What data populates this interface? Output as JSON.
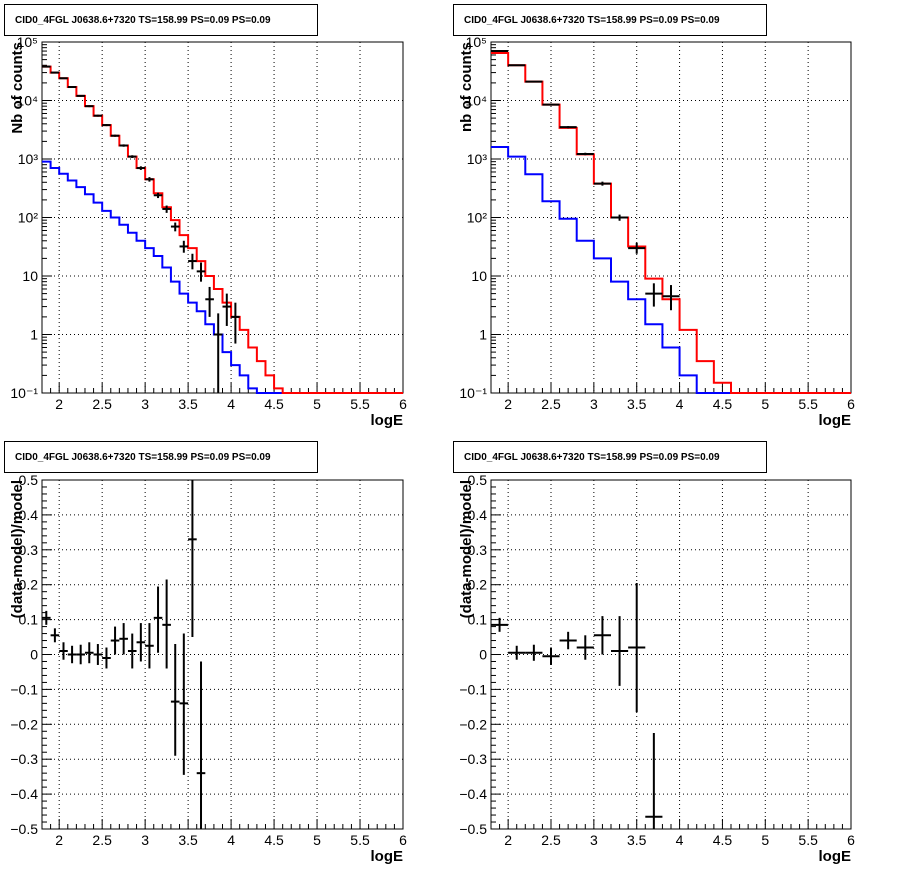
{
  "chart_data": [
    {
      "type": "line",
      "title": "CID0_4FGL J0638.6+7320 TS=158.99 PS=0.09 PS=0.09",
      "xlabel": "logE",
      "ylabel": "Nb of counts",
      "xlim": [
        1.8,
        6.0
      ],
      "ylim": [
        0.1,
        100000
      ],
      "yscale": "log",
      "xticks": [
        "2",
        "2.5",
        "3",
        "3.5",
        "4",
        "4.5",
        "5",
        "5.5",
        "6"
      ],
      "yticks": [
        "10⁻¹",
        "1",
        "10",
        "10²",
        "10³",
        "10⁴",
        "10⁵"
      ],
      "grid": true,
      "series": [
        {
          "color": "#0000ff",
          "edges": [
            1.8,
            1.9,
            2.0,
            2.1,
            2.2,
            2.3,
            2.4,
            2.5,
            2.6,
            2.7,
            2.8,
            2.9,
            3.0,
            3.1,
            3.2,
            3.3,
            3.4,
            3.5,
            3.6,
            3.7,
            3.8,
            3.9,
            4.0,
            4.1,
            4.2,
            4.3,
            4.4,
            4.5,
            4.6,
            4.7,
            4.8,
            4.9,
            5.0,
            5.1,
            5.2,
            5.3,
            5.4,
            5.5,
            5.6,
            5.7,
            5.8,
            5.9,
            6.0
          ],
          "values": [
            900,
            700,
            560,
            430,
            330,
            250,
            180,
            130,
            100,
            75,
            55,
            40,
            30,
            22,
            14,
            8,
            5,
            3.5,
            2.5,
            1.5,
            1,
            0.5,
            0.3,
            0.2,
            0.12,
            0.1,
            0.1,
            0.1,
            0.1,
            0.1,
            0.1,
            0.1,
            0.1,
            0.1,
            0.1,
            0.1,
            0.1,
            0.1,
            0.1,
            0.1,
            0.1,
            0.1
          ]
        },
        {
          "color": "#ff0000",
          "edges": [
            1.8,
            1.9,
            2.0,
            2.1,
            2.2,
            2.3,
            2.4,
            2.5,
            2.6,
            2.7,
            2.8,
            2.9,
            3.0,
            3.1,
            3.2,
            3.3,
            3.4,
            3.5,
            3.6,
            3.7,
            3.8,
            3.9,
            4.0,
            4.1,
            4.2,
            4.3,
            4.4,
            4.5,
            4.6,
            4.7,
            4.8,
            4.9,
            5.0,
            5.1,
            5.2,
            5.3,
            5.4,
            5.5,
            5.6,
            5.7,
            5.8,
            5.9,
            6.0
          ],
          "values": [
            38000,
            30000,
            24000,
            17000,
            12000,
            8000,
            5500,
            3800,
            2500,
            1700,
            1100,
            700,
            450,
            260,
            150,
            90,
            50,
            30,
            18,
            10,
            6,
            3.5,
            2,
            1.2,
            0.6,
            0.35,
            0.2,
            0.12,
            0.1,
            0.1,
            0.1,
            0.1,
            0.1,
            0.1,
            0.1,
            0.1,
            0.1,
            0.1,
            0.1,
            0.1,
            0.1,
            0.1
          ]
        }
      ],
      "points": [
        {
          "x": 1.85,
          "y": 38000,
          "xerr": 0.05,
          "ylo": 37000,
          "yhi": 39000
        },
        {
          "x": 1.95,
          "y": 30000,
          "xerr": 0.05,
          "ylo": 29500,
          "yhi": 30500
        },
        {
          "x": 2.05,
          "y": 24000,
          "xerr": 0.05,
          "ylo": 23500,
          "yhi": 24500
        },
        {
          "x": 2.15,
          "y": 17000,
          "xerr": 0.05,
          "ylo": 16500,
          "yhi": 17500
        },
        {
          "x": 2.25,
          "y": 12000,
          "xerr": 0.05,
          "ylo": 11600,
          "yhi": 12400
        },
        {
          "x": 2.35,
          "y": 8000,
          "xerr": 0.05,
          "ylo": 7700,
          "yhi": 8300
        },
        {
          "x": 2.45,
          "y": 5500,
          "xerr": 0.05,
          "ylo": 5300,
          "yhi": 5700
        },
        {
          "x": 2.55,
          "y": 3800,
          "xerr": 0.05,
          "ylo": 3650,
          "yhi": 3950
        },
        {
          "x": 2.65,
          "y": 2500,
          "xerr": 0.05,
          "ylo": 2400,
          "yhi": 2600
        },
        {
          "x": 2.75,
          "y": 1700,
          "xerr": 0.05,
          "ylo": 1620,
          "yhi": 1780
        },
        {
          "x": 2.85,
          "y": 1100,
          "xerr": 0.05,
          "ylo": 1040,
          "yhi": 1160
        },
        {
          "x": 2.95,
          "y": 700,
          "xerr": 0.05,
          "ylo": 650,
          "yhi": 750
        },
        {
          "x": 3.05,
          "y": 450,
          "xerr": 0.05,
          "ylo": 410,
          "yhi": 490
        },
        {
          "x": 3.15,
          "y": 240,
          "xerr": 0.05,
          "ylo": 215,
          "yhi": 265
        },
        {
          "x": 3.25,
          "y": 140,
          "xerr": 0.05,
          "ylo": 120,
          "yhi": 160
        },
        {
          "x": 3.35,
          "y": 70,
          "xerr": 0.05,
          "ylo": 58,
          "yhi": 82
        },
        {
          "x": 3.45,
          "y": 32,
          "xerr": 0.05,
          "ylo": 25,
          "yhi": 40
        },
        {
          "x": 3.55,
          "y": 18,
          "xerr": 0.05,
          "ylo": 13,
          "yhi": 24
        },
        {
          "x": 3.65,
          "y": 12,
          "xerr": 0.05,
          "ylo": 8,
          "yhi": 17
        },
        {
          "x": 3.75,
          "y": 4,
          "xerr": 0.05,
          "ylo": 2,
          "yhi": 6.5
        },
        {
          "x": 3.85,
          "y": 1,
          "xerr": 0.05,
          "ylo": 0.1,
          "yhi": 2.3
        },
        {
          "x": 3.95,
          "y": 3,
          "xerr": 0.05,
          "ylo": 1.4,
          "yhi": 5
        },
        {
          "x": 4.05,
          "y": 2,
          "xerr": 0.05,
          "ylo": 0.7,
          "yhi": 3.5
        }
      ]
    },
    {
      "type": "line",
      "title": "CID0_4FGL J0638.6+7320 TS=158.99 PS=0.09 PS=0.09",
      "xlabel": "logE",
      "ylabel": "nb of counts",
      "xlim": [
        1.8,
        6.0
      ],
      "ylim": [
        0.1,
        100000
      ],
      "yscale": "log",
      "xticks": [
        "2",
        "2.5",
        "3",
        "3.5",
        "4",
        "4.5",
        "5",
        "5.5",
        "6"
      ],
      "yticks": [
        "10⁻¹",
        "1",
        "10",
        "10²",
        "10³",
        "10⁴",
        "10⁵"
      ],
      "grid": true,
      "series": [
        {
          "color": "#0000ff",
          "edges": [
            1.8,
            2.0,
            2.2,
            2.4,
            2.6,
            2.8,
            3.0,
            3.2,
            3.4,
            3.6,
            3.8,
            4.0,
            4.2,
            4.4,
            4.6,
            4.8,
            5.0,
            5.2,
            5.4,
            5.6,
            5.8,
            6.0
          ],
          "values": [
            1600,
            1100,
            550,
            190,
            95,
            40,
            20,
            8,
            4,
            1.5,
            0.6,
            0.2,
            0.1,
            0.1,
            0.1,
            0.1,
            0.1,
            0.1,
            0.1,
            0.1,
            0.1
          ]
        },
        {
          "color": "#ff0000",
          "edges": [
            1.8,
            2.0,
            2.2,
            2.4,
            2.6,
            2.8,
            3.0,
            3.2,
            3.4,
            3.6,
            3.8,
            4.0,
            4.2,
            4.4,
            4.6,
            4.8,
            5.0,
            5.2,
            5.4,
            5.6,
            5.8,
            6.0
          ],
          "values": [
            65000,
            40000,
            21000,
            8500,
            3400,
            1200,
            380,
            100,
            32,
            9,
            4,
            1.2,
            0.35,
            0.15,
            0.1,
            0.1,
            0.1,
            0.1,
            0.1,
            0.1,
            0.1
          ]
        }
      ],
      "points": [
        {
          "x": 1.9,
          "y": 70000,
          "xerr": 0.1,
          "ylo": 68000,
          "yhi": 72000
        },
        {
          "x": 2.1,
          "y": 40000,
          "xerr": 0.1,
          "ylo": 39000,
          "yhi": 41000
        },
        {
          "x": 2.3,
          "y": 21000,
          "xerr": 0.1,
          "ylo": 20500,
          "yhi": 21500
        },
        {
          "x": 2.5,
          "y": 8500,
          "xerr": 0.1,
          "ylo": 8200,
          "yhi": 8800
        },
        {
          "x": 2.7,
          "y": 3500,
          "xerr": 0.1,
          "ylo": 3350,
          "yhi": 3650
        },
        {
          "x": 2.9,
          "y": 1220,
          "xerr": 0.1,
          "ylo": 1160,
          "yhi": 1280
        },
        {
          "x": 3.1,
          "y": 380,
          "xerr": 0.1,
          "ylo": 350,
          "yhi": 410
        },
        {
          "x": 3.3,
          "y": 100,
          "xerr": 0.1,
          "ylo": 88,
          "yhi": 112
        },
        {
          "x": 3.5,
          "y": 30,
          "xerr": 0.1,
          "ylo": 24,
          "yhi": 37
        },
        {
          "x": 3.7,
          "y": 5,
          "xerr": 0.1,
          "ylo": 3,
          "yhi": 7.5
        },
        {
          "x": 3.9,
          "y": 4.5,
          "xerr": 0.1,
          "ylo": 2.6,
          "yhi": 7
        }
      ]
    },
    {
      "type": "scatter",
      "title": "CID0_4FGL J0638.6+7320 TS=158.99 PS=0.09 PS=0.09",
      "xlabel": "logE",
      "ylabel": "(data-model)/model",
      "xlim": [
        1.8,
        6.0
      ],
      "ylim": [
        -0.5,
        0.5
      ],
      "xticks": [
        "2",
        "2.5",
        "3",
        "3.5",
        "4",
        "4.5",
        "5",
        "5.5",
        "6"
      ],
      "yticks": [
        "−0.5",
        "−0.4",
        "−0.3",
        "−0.2",
        "−0.1",
        "0",
        "0.1",
        "0.2",
        "0.3",
        "0.4",
        "0.5"
      ],
      "grid": true,
      "points": [
        {
          "x": 1.85,
          "y": 0.105,
          "xerr": 0.05,
          "ylo": 0.085,
          "yhi": 0.125
        },
        {
          "x": 1.95,
          "y": 0.055,
          "xerr": 0.05,
          "ylo": 0.035,
          "yhi": 0.075
        },
        {
          "x": 2.05,
          "y": 0.01,
          "xerr": 0.05,
          "ylo": -0.015,
          "yhi": 0.035
        },
        {
          "x": 2.15,
          "y": 0.0,
          "xerr": 0.05,
          "ylo": -0.025,
          "yhi": 0.025
        },
        {
          "x": 2.25,
          "y": 0.0,
          "xerr": 0.05,
          "ylo": -0.028,
          "yhi": 0.028
        },
        {
          "x": 2.35,
          "y": 0.005,
          "xerr": 0.05,
          "ylo": -0.025,
          "yhi": 0.035
        },
        {
          "x": 2.45,
          "y": 0.0,
          "xerr": 0.05,
          "ylo": -0.03,
          "yhi": 0.03
        },
        {
          "x": 2.55,
          "y": -0.01,
          "xerr": 0.05,
          "ylo": -0.04,
          "yhi": 0.02
        },
        {
          "x": 2.65,
          "y": 0.04,
          "xerr": 0.05,
          "ylo": 0.0,
          "yhi": 0.08
        },
        {
          "x": 2.75,
          "y": 0.045,
          "xerr": 0.05,
          "ylo": 0.0,
          "yhi": 0.09
        },
        {
          "x": 2.85,
          "y": 0.01,
          "xerr": 0.05,
          "ylo": -0.04,
          "yhi": 0.06
        },
        {
          "x": 2.95,
          "y": 0.035,
          "xerr": 0.05,
          "ylo": -0.02,
          "yhi": 0.09
        },
        {
          "x": 3.05,
          "y": 0.025,
          "xerr": 0.05,
          "ylo": -0.04,
          "yhi": 0.09
        },
        {
          "x": 3.15,
          "y": 0.105,
          "xerr": 0.05,
          "ylo": 0.005,
          "yhi": 0.195
        },
        {
          "x": 3.25,
          "y": 0.085,
          "xerr": 0.05,
          "ylo": -0.04,
          "yhi": 0.215
        },
        {
          "x": 3.35,
          "y": -0.135,
          "xerr": 0.05,
          "ylo": -0.29,
          "yhi": 0.03
        },
        {
          "x": 3.45,
          "y": -0.14,
          "xerr": 0.05,
          "ylo": -0.345,
          "yhi": 0.06
        },
        {
          "x": 3.55,
          "y": 0.33,
          "xerr": 0.05,
          "ylo": 0.05,
          "yhi": 0.5
        },
        {
          "x": 3.65,
          "y": -0.34,
          "xerr": 0.05,
          "ylo": -0.5,
          "yhi": -0.02
        }
      ]
    },
    {
      "type": "scatter",
      "title": "CID0_4FGL J0638.6+7320 TS=158.99 PS=0.09 PS=0.09",
      "xlabel": "logE",
      "ylabel": "(data-model)/model",
      "xlim": [
        1.8,
        6.0
      ],
      "ylim": [
        -0.5,
        0.5
      ],
      "xticks": [
        "2",
        "2.5",
        "3",
        "3.5",
        "4",
        "4.5",
        "5",
        "5.5",
        "6"
      ],
      "yticks": [
        "−0.5",
        "−0.4",
        "−0.3",
        "−0.2",
        "−0.1",
        "0",
        "0.1",
        "0.2",
        "0.3",
        "0.4",
        "0.5"
      ],
      "grid": true,
      "points": [
        {
          "x": 1.9,
          "y": 0.085,
          "xerr": 0.1,
          "ylo": 0.065,
          "yhi": 0.105
        },
        {
          "x": 2.1,
          "y": 0.005,
          "xerr": 0.1,
          "ylo": -0.015,
          "yhi": 0.025
        },
        {
          "x": 2.3,
          "y": 0.005,
          "xerr": 0.1,
          "ylo": -0.018,
          "yhi": 0.028
        },
        {
          "x": 2.5,
          "y": -0.005,
          "xerr": 0.1,
          "ylo": -0.03,
          "yhi": 0.02
        },
        {
          "x": 2.7,
          "y": 0.04,
          "xerr": 0.1,
          "ylo": 0.015,
          "yhi": 0.065
        },
        {
          "x": 2.9,
          "y": 0.02,
          "xerr": 0.1,
          "ylo": -0.015,
          "yhi": 0.055
        },
        {
          "x": 3.1,
          "y": 0.055,
          "xerr": 0.1,
          "ylo": 0.0,
          "yhi": 0.11
        },
        {
          "x": 3.3,
          "y": 0.01,
          "xerr": 0.1,
          "ylo": -0.09,
          "yhi": 0.11
        },
        {
          "x": 3.5,
          "y": 0.02,
          "xerr": 0.1,
          "ylo": -0.165,
          "yhi": 0.205
        },
        {
          "x": 3.7,
          "y": -0.465,
          "xerr": 0.1,
          "ylo": -0.5,
          "yhi": -0.225
        }
      ]
    }
  ]
}
